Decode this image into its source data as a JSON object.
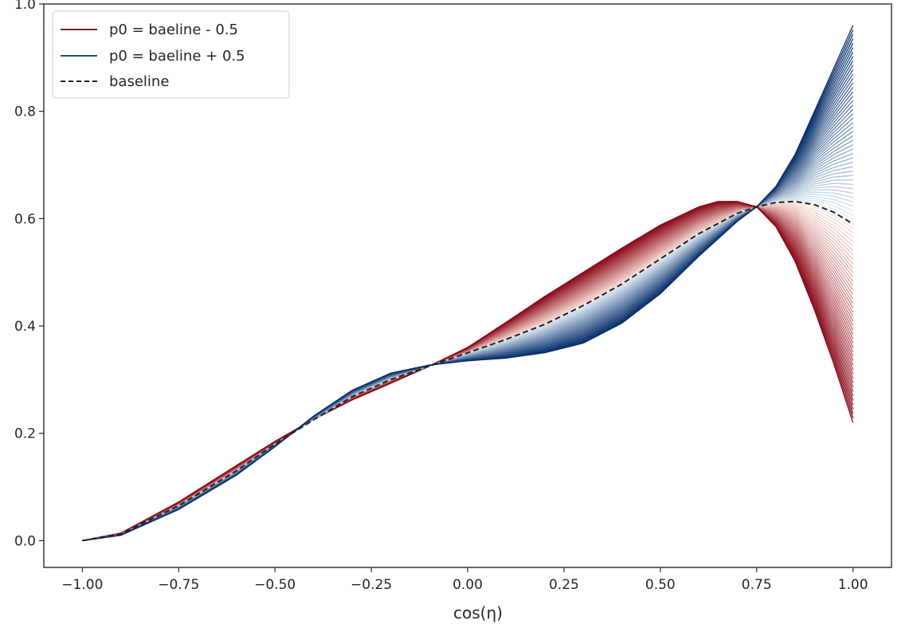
{
  "chart_data": {
    "type": "line",
    "title": "",
    "xlabel": "cos(η)",
    "ylabel": "",
    "xlim": [
      -1.1,
      1.1
    ],
    "ylim": [
      -0.05,
      1.0
    ],
    "x_ticks": [
      "−1.00",
      "−0.75",
      "−0.50",
      "−0.25",
      "0.00",
      "0.25",
      "0.50",
      "0.75",
      "1.00"
    ],
    "x_tick_values": [
      -1.0,
      -0.75,
      -0.5,
      -0.25,
      0.0,
      0.25,
      0.5,
      0.75,
      1.0
    ],
    "y_ticks": [
      "0.0",
      "0.2",
      "0.4",
      "0.6",
      "0.8",
      "1.0"
    ],
    "y_tick_values": [
      0.0,
      0.2,
      0.4,
      0.6,
      0.8,
      1.0
    ],
    "grid": false,
    "legend_placement": "upper-left",
    "legend": [
      {
        "label": "p0 = baeline - 0.5",
        "color": "#7f1d2c",
        "style": "solid"
      },
      {
        "label": "p0 = baeline + 0.5",
        "color": "#1f4e85",
        "style": "solid"
      },
      {
        "label": "baseline",
        "color": "#222222",
        "style": "dashed"
      }
    ],
    "series": [
      {
        "name": "baseline",
        "x": [
          -1.0,
          -0.9,
          -0.75,
          -0.6,
          -0.5,
          -0.4,
          -0.3,
          -0.2,
          -0.1,
          0.0,
          0.1,
          0.2,
          0.3,
          0.4,
          0.5,
          0.6,
          0.7,
          0.75,
          0.8,
          0.85,
          0.9,
          0.95,
          1.0
        ],
        "y": [
          0.0,
          0.012,
          0.065,
          0.13,
          0.18,
          0.225,
          0.268,
          0.3,
          0.325,
          0.35,
          0.375,
          0.403,
          0.438,
          0.478,
          0.525,
          0.572,
          0.61,
          0.622,
          0.63,
          0.632,
          0.626,
          0.612,
          0.59
        ]
      },
      {
        "name": "p0 = baeline - 0.5",
        "x": [
          -1.0,
          -0.9,
          -0.75,
          -0.6,
          -0.5,
          -0.4,
          -0.3,
          -0.2,
          -0.1,
          0.0,
          0.1,
          0.2,
          0.3,
          0.4,
          0.5,
          0.6,
          0.65,
          0.7,
          0.75,
          0.8,
          0.85,
          0.9,
          0.95,
          1.0
        ],
        "y": [
          0.0,
          0.014,
          0.072,
          0.14,
          0.185,
          0.226,
          0.262,
          0.293,
          0.325,
          0.36,
          0.407,
          0.455,
          0.5,
          0.545,
          0.588,
          0.622,
          0.632,
          0.632,
          0.622,
          0.585,
          0.52,
          0.43,
          0.33,
          0.22
        ]
      },
      {
        "name": "p0 = baeline + 0.5",
        "x": [
          -1.0,
          -0.9,
          -0.75,
          -0.6,
          -0.5,
          -0.4,
          -0.3,
          -0.2,
          -0.1,
          0.0,
          0.1,
          0.2,
          0.3,
          0.4,
          0.5,
          0.6,
          0.7,
          0.75,
          0.8,
          0.85,
          0.9,
          0.95,
          1.0
        ],
        "y": [
          0.0,
          0.01,
          0.058,
          0.122,
          0.175,
          0.232,
          0.28,
          0.312,
          0.327,
          0.335,
          0.34,
          0.35,
          0.368,
          0.405,
          0.46,
          0.53,
          0.595,
          0.622,
          0.66,
          0.72,
          0.8,
          0.88,
          0.96
        ]
      }
    ],
    "colors": {
      "red_dark": "#8b0a1a",
      "red_light": "#fbe3da",
      "blue_dark": "#08306b",
      "blue_light": "#e3eef8",
      "frame": "#262626"
    }
  }
}
